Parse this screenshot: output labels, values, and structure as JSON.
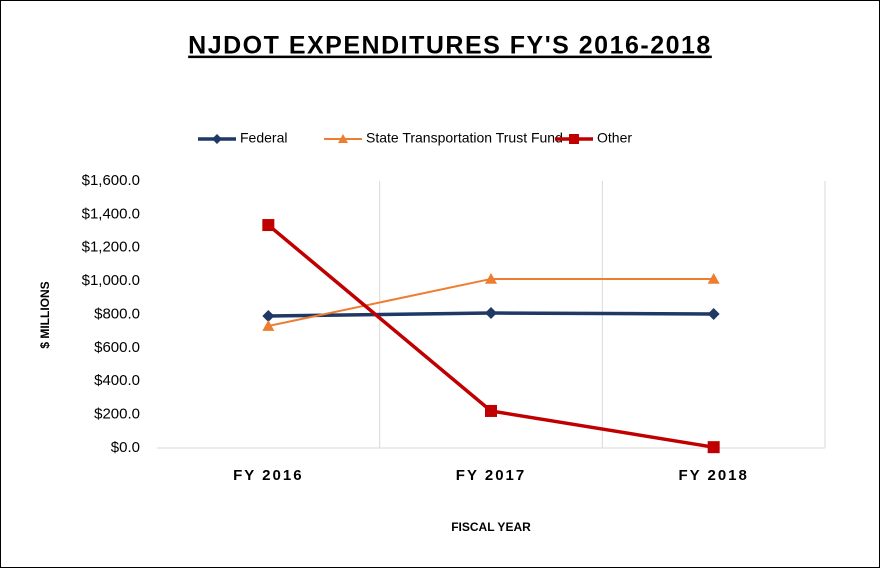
{
  "chart_data": {
    "type": "line",
    "title": "NJDOT  EXPENDITURES  FY'S 2016-2018",
    "categories": [
      "FY 2016",
      "FY 2017",
      "FY 2018"
    ],
    "series": [
      {
        "name": "Federal",
        "color": "#1f3864",
        "marker": "diamond",
        "values": [
          791,
          809,
          803
        ]
      },
      {
        "name": "State Transportation Trust Fund",
        "color": "#ed7d31",
        "marker": "triangle",
        "values": [
          731,
          1013,
          1013
        ]
      },
      {
        "name": "Other",
        "color": "#c00000",
        "marker": "square",
        "values": [
          1336,
          222,
          5
        ]
      }
    ],
    "ylim": [
      0,
      1600
    ],
    "yticks": [
      {
        "value": 0,
        "label": "$0.0"
      },
      {
        "value": 200,
        "label": "$200.0"
      },
      {
        "value": 400,
        "label": "$400.0"
      },
      {
        "value": 600,
        "label": "$600.0"
      },
      {
        "value": 800,
        "label": "$800.0"
      },
      {
        "value": 1000,
        "label": "$1,000.0"
      },
      {
        "value": 1200,
        "label": "$1,200.0"
      },
      {
        "value": 1400,
        "label": "$1,400.0"
      },
      {
        "value": 1600,
        "label": "$1,600.0"
      }
    ],
    "ylabel": "$ MILLIONS",
    "xlabel": "FISCAL YEAR",
    "legend": "top"
  }
}
